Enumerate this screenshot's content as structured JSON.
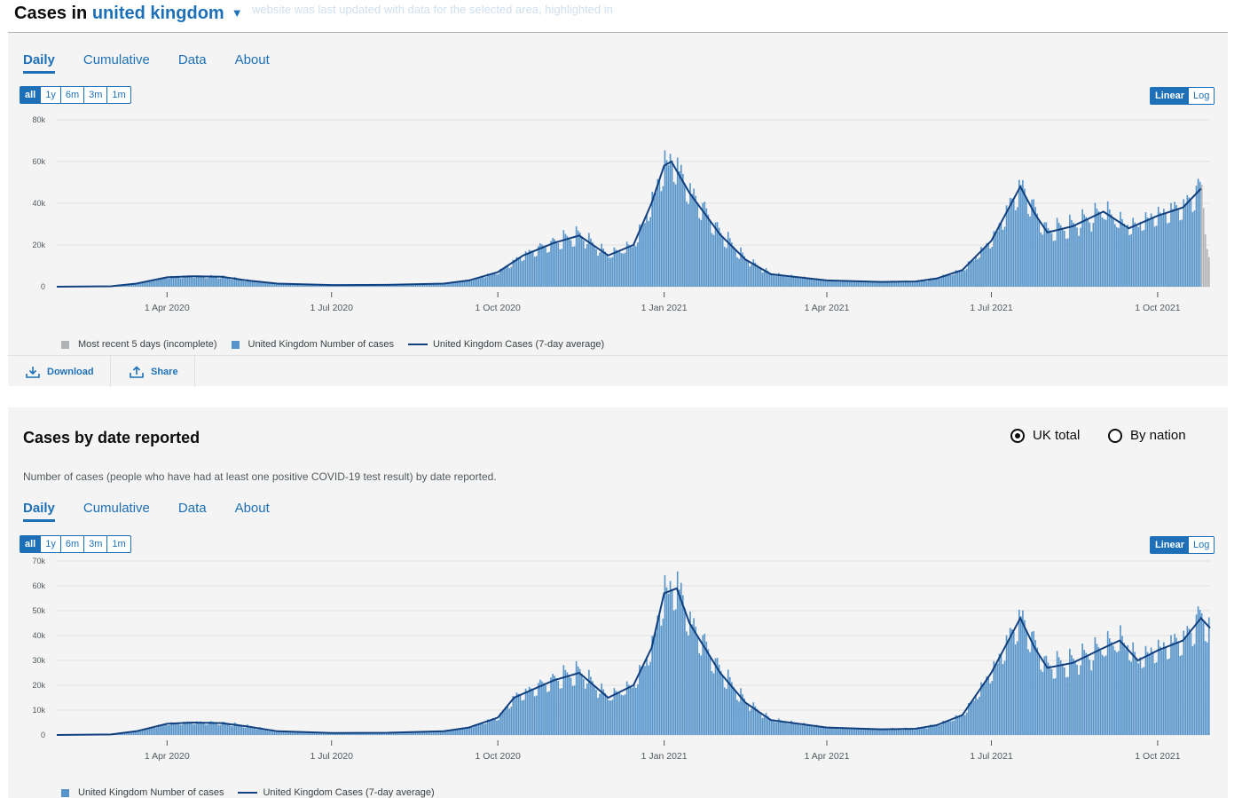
{
  "header": {
    "title_prefix": "Cases in",
    "area": "united kingdom",
    "ghost_text": "website was last updated with data for the selected area, highlighted in"
  },
  "card1": {
    "tabs": [
      "Daily",
      "Cumulative",
      "Data",
      "About"
    ],
    "ranges": [
      "all",
      "1y",
      "6m",
      "3m",
      "1m"
    ],
    "scales": [
      "Linear",
      "Log"
    ],
    "legend": {
      "incomplete": "Most recent 5 days (incomplete)",
      "bars": "United Kingdom Number of cases",
      "line": "United Kingdom Cases (7-day average)"
    },
    "download": "Download",
    "share": "Share"
  },
  "card2": {
    "title": "Cases by date reported",
    "description": "Number of cases (people who have had at least one positive COVID-19 test result) by date reported.",
    "radio_uk": "UK total",
    "radio_nation": "By nation",
    "tabs": [
      "Daily",
      "Cumulative",
      "Data",
      "About"
    ],
    "ranges": [
      "all",
      "1y",
      "6m",
      "3m",
      "1m"
    ],
    "scales": [
      "Linear",
      "Log"
    ],
    "legend": {
      "bars": "United Kingdom Number of cases",
      "line": "United Kingdom Cases (7-day average)"
    }
  },
  "colors": {
    "bar": "#5694ca",
    "line": "#12407f",
    "incomplete": "#b1b4b6",
    "accent": "#1d70b8"
  },
  "chart_data": [
    {
      "type": "bar",
      "title": "Cases in united kingdom",
      "x_range": [
        "2020-01-31",
        "2021-10-30"
      ],
      "x_ticks": [
        "1 Apr 2020",
        "1 Jul 2020",
        "1 Oct 2020",
        "1 Jan 2021",
        "1 Apr 2021",
        "1 Jul 2021",
        "1 Oct 2021"
      ],
      "y_ticks": [
        "0",
        "20k",
        "40k",
        "60k",
        "80k"
      ],
      "ylim": [
        0,
        80000
      ],
      "grid": true,
      "legend_position": "bottom-left",
      "series": [
        {
          "name": "United Kingdom Number of cases",
          "type": "bar"
        },
        {
          "name": "United Kingdom Cases (7-day average)",
          "type": "line",
          "points": [
            [
              "2020-01-31",
              0
            ],
            [
              "2020-03-01",
              200
            ],
            [
              "2020-03-15",
              1500
            ],
            [
              "2020-04-01",
              4500
            ],
            [
              "2020-04-15",
              5000
            ],
            [
              "2020-05-01",
              4800
            ],
            [
              "2020-05-15",
              3000
            ],
            [
              "2020-06-01",
              1500
            ],
            [
              "2020-07-01",
              800
            ],
            [
              "2020-08-01",
              900
            ],
            [
              "2020-09-01",
              1500
            ],
            [
              "2020-09-15",
              3000
            ],
            [
              "2020-10-01",
              7000
            ],
            [
              "2020-10-15",
              15000
            ],
            [
              "2020-11-01",
              21000
            ],
            [
              "2020-11-15",
              24500
            ],
            [
              "2020-12-01",
              15000
            ],
            [
              "2020-12-15",
              20000
            ],
            [
              "2020-12-25",
              40000
            ],
            [
              "2021-01-01",
              58000
            ],
            [
              "2021-01-05",
              60000
            ],
            [
              "2021-01-15",
              45000
            ],
            [
              "2021-02-01",
              25000
            ],
            [
              "2021-02-15",
              13000
            ],
            [
              "2021-03-01",
              6000
            ],
            [
              "2021-04-01",
              3000
            ],
            [
              "2021-05-01",
              2300
            ],
            [
              "2021-05-20",
              2500
            ],
            [
              "2021-06-01",
              4000
            ],
            [
              "2021-06-15",
              8000
            ],
            [
              "2021-07-01",
              22000
            ],
            [
              "2021-07-17",
              48000
            ],
            [
              "2021-07-25",
              35000
            ],
            [
              "2021-08-01",
              26000
            ],
            [
              "2021-08-15",
              29000
            ],
            [
              "2021-09-01",
              36000
            ],
            [
              "2021-09-15",
              28000
            ],
            [
              "2021-10-01",
              34000
            ],
            [
              "2021-10-15",
              38000
            ],
            [
              "2021-10-25",
              47000
            ]
          ]
        },
        {
          "name": "Most recent 5 days (incomplete)",
          "type": "bar"
        }
      ]
    },
    {
      "type": "bar",
      "title": "Cases by date reported",
      "x_range": [
        "2020-01-31",
        "2021-10-30"
      ],
      "x_ticks": [
        "1 Apr 2020",
        "1 Jul 2020",
        "1 Oct 2020",
        "1 Jan 2021",
        "1 Apr 2021",
        "1 Jul 2021",
        "1 Oct 2021"
      ],
      "y_ticks": [
        "0",
        "10k",
        "20k",
        "30k",
        "40k",
        "50k",
        "60k",
        "70k"
      ],
      "ylim": [
        0,
        70000
      ],
      "grid": true,
      "legend_position": "bottom-left",
      "series": [
        {
          "name": "United Kingdom Number of cases",
          "type": "bar"
        },
        {
          "name": "United Kingdom Cases (7-day average)",
          "type": "line",
          "points": [
            [
              "2020-01-31",
              0
            ],
            [
              "2020-03-01",
              200
            ],
            [
              "2020-03-15",
              1500
            ],
            [
              "2020-04-01",
              4500
            ],
            [
              "2020-04-15",
              5000
            ],
            [
              "2020-05-01",
              4800
            ],
            [
              "2020-05-15",
              3500
            ],
            [
              "2020-06-01",
              1500
            ],
            [
              "2020-07-01",
              800
            ],
            [
              "2020-08-01",
              900
            ],
            [
              "2020-09-01",
              1500
            ],
            [
              "2020-09-15",
              3000
            ],
            [
              "2020-10-01",
              7000
            ],
            [
              "2020-10-10",
              15000
            ],
            [
              "2020-11-01",
              22000
            ],
            [
              "2020-11-15",
              25000
            ],
            [
              "2020-12-01",
              15000
            ],
            [
              "2020-12-15",
              20000
            ],
            [
              "2020-12-25",
              35000
            ],
            [
              "2021-01-01",
              57000
            ],
            [
              "2021-01-08",
              59000
            ],
            [
              "2021-01-15",
              45000
            ],
            [
              "2021-02-01",
              25000
            ],
            [
              "2021-02-15",
              13000
            ],
            [
              "2021-03-01",
              6000
            ],
            [
              "2021-04-01",
              3000
            ],
            [
              "2021-05-01",
              2300
            ],
            [
              "2021-05-20",
              2500
            ],
            [
              "2021-06-01",
              4000
            ],
            [
              "2021-06-15",
              8000
            ],
            [
              "2021-07-01",
              25000
            ],
            [
              "2021-07-17",
              47000
            ],
            [
              "2021-07-25",
              35000
            ],
            [
              "2021-08-01",
              27000
            ],
            [
              "2021-08-15",
              29000
            ],
            [
              "2021-09-01",
              35000
            ],
            [
              "2021-09-10",
              38000
            ],
            [
              "2021-09-20",
              30000
            ],
            [
              "2021-10-01",
              34000
            ],
            [
              "2021-10-15",
              38000
            ],
            [
              "2021-10-25",
              47000
            ],
            [
              "2021-10-30",
              43000
            ]
          ]
        }
      ]
    }
  ]
}
